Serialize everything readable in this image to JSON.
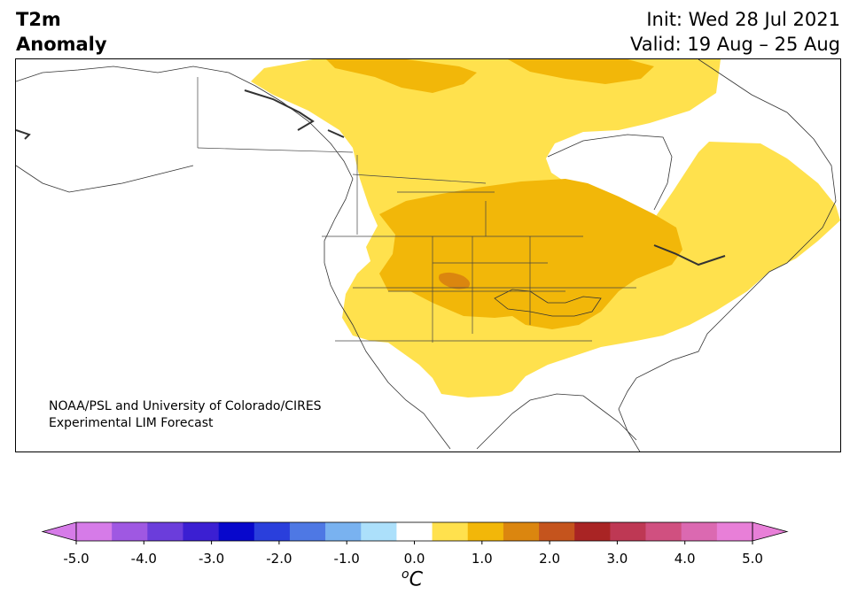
{
  "header": {
    "title_line1": "T2m",
    "title_line2": "Anomaly",
    "init": "Init: Wed 28 Jul 2021",
    "valid": "Valid: 19 Aug – 25 Aug"
  },
  "map": {
    "credit_line1": "NOAA/PSL and University of Colorado/CIRES",
    "credit_line2": "Experimental LIM Forecast"
  },
  "colorbar": {
    "unit_base": "C",
    "unit_sup": "o",
    "tick_labels": [
      "-5.0",
      "-4.0",
      "-3.0",
      "-2.0",
      "-1.0",
      "0.0",
      "1.0",
      "2.0",
      "3.0",
      "4.0",
      "5.0"
    ],
    "colors": [
      "#d67be8",
      "#9f58e2",
      "#6b3ddb",
      "#3b1fd2",
      "#0808cc",
      "#2a3fdc",
      "#4e78e4",
      "#79b2f0",
      "#ace0fb",
      "#ffffff",
      "#ffe14d",
      "#f2b709",
      "#db860f",
      "#c5541d",
      "#a92424",
      "#be3854",
      "#d05080",
      "#db69b1",
      "#e87fd8"
    ],
    "under_color": "#d67be8",
    "over_color": "#e87fd8"
  }
}
